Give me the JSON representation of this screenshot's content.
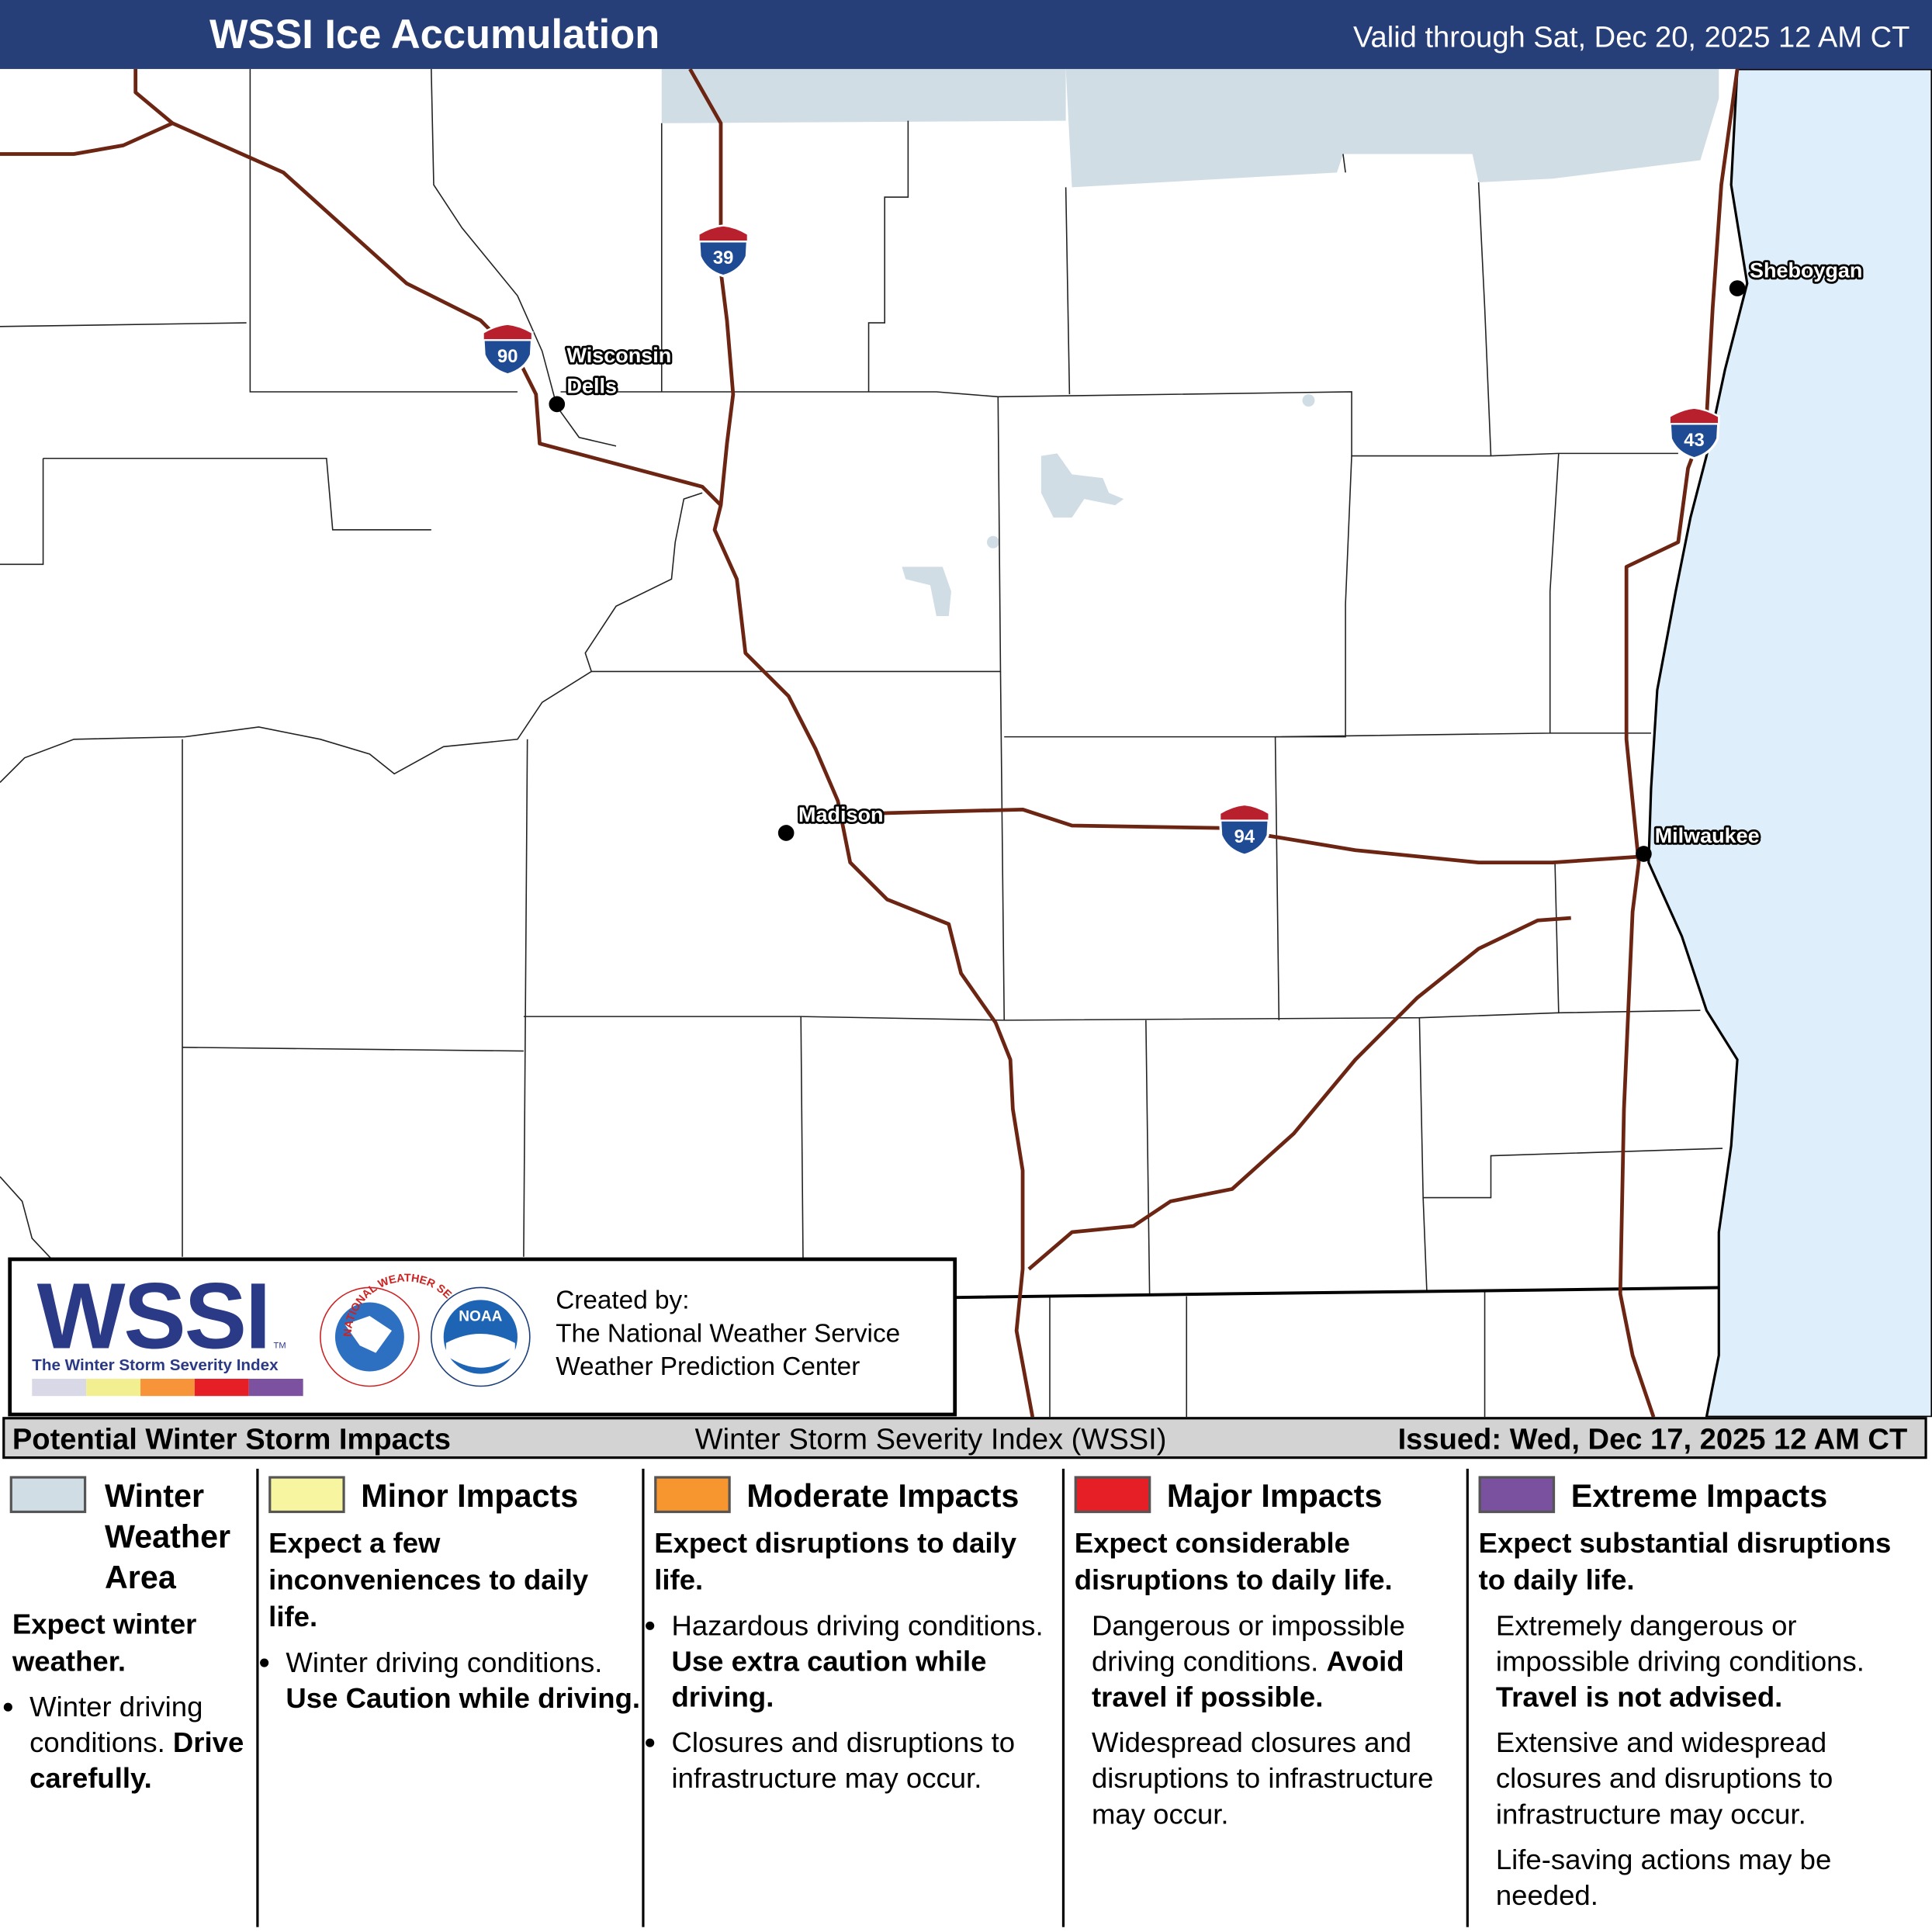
{
  "header": {
    "title": "WSSI Ice Accumulation",
    "valid": "Valid through Sat, Dec 20, 2025 12 AM CT"
  },
  "map": {
    "cities": [
      {
        "lines": [
          "Wisconsin",
          "Dells"
        ]
      },
      {
        "lines": [
          "Madison"
        ]
      },
      {
        "lines": [
          "Sheboygan"
        ]
      },
      {
        "lines": [
          "Milwaukee"
        ]
      }
    ],
    "interstates": [
      "39",
      "90",
      "43",
      "94"
    ]
  },
  "credits": {
    "logo": "WSSI",
    "logo_mark": "TM",
    "logo_subtitle": "The Winter Storm Severity Index",
    "scale_colors": [
      "#d9d8e6",
      "#f1ef8f",
      "#f7943a",
      "#e61f26",
      "#7c52a0"
    ],
    "nws_ring": "NATIONAL WEATHER SERVICE",
    "noaa": "NOAA",
    "created_by": "Created by:",
    "org1": "The National Weather Service",
    "org2": "Weather Prediction Center"
  },
  "legend": {
    "title": "Potential Winter Storm Impacts",
    "subtitle": "Winter Storm Severity Index (WSSI)",
    "issued": "Issued: Wed, Dec 17, 2025 12 AM CT",
    "categories": [
      {
        "name": "Winter Weather Area",
        "color": "#d0dde5",
        "headline": "Expect winter weather.",
        "bulleted": true,
        "details": [
          {
            "text": "Winter driving conditions.",
            "emphasis": "Drive carefully."
          }
        ]
      },
      {
        "name": "Minor Impacts",
        "color": "#f7f59f",
        "headline": "Expect a few inconveniences to daily life.",
        "bulleted": true,
        "details": [
          {
            "text": "Winter driving conditions.",
            "emphasis": "Use Caution while driving."
          }
        ]
      },
      {
        "name": "Moderate Impacts",
        "color": "#f7952f",
        "headline": "Expect disruptions to daily life.",
        "bulleted": true,
        "details": [
          {
            "text": "Hazardous driving conditions.",
            "emphasis": "Use extra caution while driving."
          },
          {
            "text": "Closures and disruptions to infrastructure may occur."
          }
        ]
      },
      {
        "name": "Major Impacts",
        "color": "#e61f26",
        "headline": "Expect considerable disruptions to daily life.",
        "bulleted": false,
        "details": [
          {
            "text": "Dangerous or impossible driving conditions.",
            "emphasis": "Avoid travel if possible."
          },
          {
            "text": "Widespread closures and disruptions to infrastructure may occur."
          }
        ]
      },
      {
        "name": "Extreme Impacts",
        "color": "#7a519f",
        "headline": "Expect substantial disruptions to daily life.",
        "bulleted": false,
        "details": [
          {
            "text": "Extremely dangerous or impossible driving conditions.",
            "emphasis": "Travel is not advised."
          },
          {
            "text": "Extensive and widespread closures and disruptions to infrastructure may occur."
          },
          {
            "text": "Life-saving actions may be needed."
          }
        ]
      }
    ]
  }
}
